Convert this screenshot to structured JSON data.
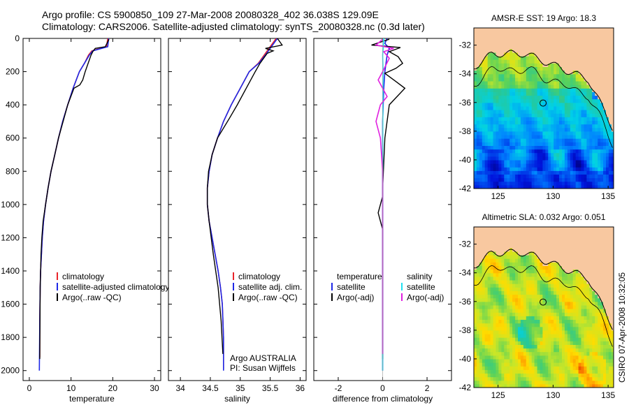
{
  "title": {
    "line1": "Argo profile: CS 5900850_109 27-Mar-2008 20080328_402 36.038S 129.09E",
    "line2": "Climatology: CARS2006. Satellite-adjusted climatology: synTS_20080328.nc (0.3d later)"
  },
  "side_text": "CSIRO 07-Apr-2008 10:32:05",
  "colors": {
    "red": "#e8242a",
    "blue": "#1e28e6",
    "black": "#000000",
    "cyan": "#20e0f0",
    "magenta": "#e020e0",
    "land": "#f8c8a0"
  },
  "chart_data": [
    {
      "type": "line",
      "id": "temperature",
      "xlabel": "temperature",
      "ylabel": "",
      "xlim": [
        -1.5,
        31.5
      ],
      "ylim": [
        2060,
        0
      ],
      "xticks": [
        0,
        10,
        20,
        30
      ],
      "yticks": [
        0,
        200,
        400,
        600,
        800,
        1000,
        1200,
        1400,
        1600,
        1800,
        2000
      ],
      "legend": [
        "climatology",
        "satellite-adjusted climatology",
        "Argo(..raw -QC)"
      ],
      "series": [
        {
          "name": "climatology",
          "color": "red",
          "x": [
            18.8,
            18.5,
            15.0,
            14.2,
            13.2,
            12.0,
            10.5,
            9.2,
            8.0,
            7.0,
            6.1,
            5.2,
            4.5,
            3.9,
            3.4,
            3.1,
            2.9,
            2.7,
            2.6,
            2.5,
            2.5
          ],
          "y": [
            0,
            50,
            75,
            100,
            150,
            200,
            300,
            400,
            500,
            600,
            700,
            800,
            900,
            1000,
            1100,
            1200,
            1300,
            1400,
            1500,
            1700,
            1920
          ]
        },
        {
          "name": "satellite-adjusted climatology",
          "color": "blue",
          "x": [
            19.0,
            18.8,
            15.2,
            14.4,
            13.2,
            12.0,
            10.5,
            9.2,
            8.0,
            7.0,
            6.1,
            5.2,
            4.5,
            3.9,
            3.4,
            3.1,
            2.9,
            2.7,
            2.6,
            2.5,
            2.4
          ],
          "y": [
            0,
            50,
            75,
            100,
            150,
            200,
            300,
            400,
            500,
            600,
            700,
            800,
            900,
            1000,
            1100,
            1200,
            1300,
            1400,
            1500,
            1700,
            2000
          ]
        },
        {
          "name": "Argo(..raw -QC)",
          "color": "black",
          "x": [
            19.1,
            18.2,
            15.8,
            15.2,
            14.8,
            14.1,
            13.4,
            12.8,
            12.1,
            10.7,
            9.2,
            8.1,
            7.0,
            6.1,
            5.2,
            4.5,
            3.9,
            3.3,
            3.0,
            2.8,
            2.6,
            2.5
          ],
          "y": [
            5,
            50,
            60,
            80,
            100,
            150,
            200,
            250,
            280,
            300,
            400,
            500,
            600,
            700,
            800,
            900,
            1000,
            1100,
            1200,
            1300,
            1500,
            1930
          ]
        }
      ]
    },
    {
      "type": "line",
      "id": "salinity",
      "xlabel": "salinity",
      "xlim": [
        33.8,
        36.1
      ],
      "ylim": [
        2060,
        0
      ],
      "xticks": [
        34,
        34.5,
        35,
        35.5,
        36
      ],
      "yticks": [
        0,
        200,
        400,
        600,
        800,
        1000,
        1200,
        1400,
        1600,
        1800,
        2000
      ],
      "legend": [
        "climatology",
        "satellite adj. clim.",
        "Argo(..raw -QC)"
      ],
      "annotation": [
        "Argo AUSTRALIA",
        "PI: Susan Wijffels"
      ],
      "series": [
        {
          "name": "climatology",
          "color": "red",
          "x": [
            35.6,
            35.5,
            35.4,
            35.3,
            35.15,
            35.0,
            34.85,
            34.72,
            34.62,
            34.53,
            34.48,
            34.45,
            34.45,
            34.48,
            34.53,
            34.58,
            34.63,
            34.67,
            34.7,
            34.72,
            34.72
          ],
          "y": [
            0,
            50,
            100,
            150,
            200,
            300,
            400,
            500,
            600,
            700,
            800,
            900,
            1000,
            1100,
            1200,
            1300,
            1400,
            1500,
            1600,
            1800,
            1990
          ]
        },
        {
          "name": "satellite adj. clim.",
          "color": "blue",
          "x": [
            35.62,
            35.52,
            35.42,
            35.31,
            35.15,
            35.0,
            34.85,
            34.72,
            34.62,
            34.53,
            34.48,
            34.45,
            34.45,
            34.48,
            34.53,
            34.58,
            34.63,
            34.67,
            34.7,
            34.72,
            34.72
          ],
          "y": [
            0,
            50,
            100,
            150,
            200,
            300,
            400,
            500,
            600,
            700,
            800,
            900,
            1000,
            1100,
            1200,
            1300,
            1400,
            1500,
            1600,
            1800,
            2000
          ]
        },
        {
          "name": "Argo(..raw -QC)",
          "color": "black",
          "x": [
            35.62,
            35.7,
            35.42,
            35.55,
            35.45,
            35.33,
            35.25,
            35.1,
            34.95,
            34.82,
            34.62,
            34.53,
            34.47,
            34.45,
            34.45,
            34.48,
            34.55,
            34.63,
            34.68,
            34.71
          ],
          "y": [
            0,
            40,
            60,
            75,
            90,
            150,
            200,
            300,
            400,
            480,
            600,
            700,
            800,
            900,
            1000,
            1100,
            1300,
            1500,
            1700,
            1900
          ]
        }
      ]
    },
    {
      "type": "line",
      "id": "difference",
      "xlabel": "difference from climatology",
      "xlim": [
        -3.1,
        3.1
      ],
      "ylim": [
        2060,
        0
      ],
      "xticks": [
        -2,
        0,
        2
      ],
      "yticks": [
        0,
        200,
        400,
        600,
        800,
        1000,
        1200,
        1400,
        1600,
        1800,
        2000
      ],
      "legend_left": {
        "title": "temperature",
        "items": [
          "satellite",
          "Argo(-adj)"
        ]
      },
      "legend_right": {
        "title": "salinity",
        "items": [
          "satellite",
          "Argo(-adj)"
        ]
      },
      "series": [
        {
          "name": "temperature satellite",
          "color": "blue",
          "x": [
            0.2,
            0.1,
            0.3,
            0.2,
            0.1,
            0.05,
            0,
            0
          ],
          "y": [
            0,
            30,
            60,
            100,
            200,
            300,
            500,
            2000
          ]
        },
        {
          "name": "temperature Argo(-adj)",
          "color": "black",
          "x": [
            0.3,
            -0.5,
            0.8,
            0.3,
            0.7,
            0.9,
            0.6,
            0.1,
            0.6,
            1.0,
            0.3,
            0.1,
            0.0,
            0.0,
            -0.1,
            -0.2,
            -0.1,
            0.0,
            0.0
          ],
          "y": [
            5,
            40,
            55,
            80,
            110,
            150,
            180,
            210,
            260,
            300,
            400,
            600,
            900,
            950,
            1000,
            1050,
            1100,
            1150,
            1930
          ]
        },
        {
          "name": "salinity satellite",
          "color": "cyan",
          "x": [
            0.05,
            0.03,
            0,
            0.02,
            0.01,
            0,
            0,
            0
          ],
          "y": [
            0,
            50,
            100,
            200,
            400,
            800,
            1400,
            2000
          ]
        },
        {
          "name": "salinity Argo(-adj)",
          "color": "magenta",
          "x": [
            0.0,
            -0.3,
            0.5,
            0.05,
            0.3,
            0.0,
            -0.2,
            0.2,
            -0.1,
            -0.2,
            -0.3,
            -0.1,
            0.0,
            0.0,
            0.0
          ],
          "y": [
            5,
            40,
            60,
            80,
            120,
            200,
            250,
            350,
            400,
            450,
            500,
            600,
            800,
            1200,
            1900
          ]
        }
      ]
    },
    {
      "type": "heatmap",
      "id": "sst_map",
      "title": "AMSR-E SST: 19 Argo: 18.3",
      "xlim": [
        122.8,
        135.5
      ],
      "ylim": [
        -42,
        -30.8
      ],
      "xticks": [
        125,
        130,
        135
      ],
      "yticks": [
        -32,
        -34,
        -36,
        -38,
        -40,
        -42
      ],
      "marker": {
        "lon": 129.09,
        "lat": -36.038
      }
    },
    {
      "type": "heatmap",
      "id": "sla_map",
      "title": "Altimetric SLA: 0.032 Argo: 0.051",
      "xlim": [
        122.8,
        135.5
      ],
      "ylim": [
        -42,
        -30.8
      ],
      "xticks": [
        125,
        130,
        135
      ],
      "yticks": [
        -32,
        -34,
        -36,
        -38,
        -40,
        -42
      ],
      "marker": {
        "lon": 129.09,
        "lat": -36.038
      }
    }
  ]
}
